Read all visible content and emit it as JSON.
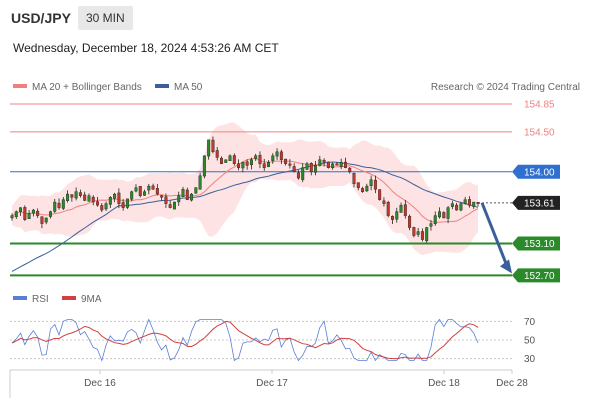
{
  "header": {
    "symbol": "USD/JPY",
    "timeframe": "30 MIN",
    "datetime": "Wednesday, December 18, 2024 4:53:26 AM CET"
  },
  "legend": {
    "ma20": "MA 20 + Bollinger Bands",
    "ma50": "MA 50",
    "credit": "Research © 2024 Trading Central",
    "rsi": "RSI",
    "rsi_ma": "9MA"
  },
  "colors": {
    "ma20": "#f08080",
    "bollinger_fill": "#fde0e0",
    "ma50": "#3a5f9a",
    "resistance": "#f08080",
    "pivot": "#2f6fcf",
    "support": "#2a8a2a",
    "candle_up": "#2a8a2a",
    "candle_down": "#c0392b",
    "rsi": "#5b7fd6",
    "rsi_ma": "#d04040",
    "arrow": "#3a5f9a"
  },
  "chart_data": [
    {
      "type": "candlestick",
      "symbol": "USD/JPY",
      "timeframe": "30 MIN",
      "ylim": [
        152.58,
        155.0
      ],
      "x_ticks": [
        "Dec 16",
        "Dec 17",
        "Dec 18",
        "Dec 28"
      ],
      "levels": [
        {
          "label": "154.85",
          "value": 154.85,
          "kind": "resistance"
        },
        {
          "label": "154.50",
          "value": 154.5,
          "kind": "resistance"
        },
        {
          "label": "154.00",
          "value": 154.0,
          "kind": "pivot"
        },
        {
          "label": "153.61",
          "value": 153.61,
          "kind": "last"
        },
        {
          "label": "153.10",
          "value": 153.1,
          "kind": "support"
        },
        {
          "label": "152.70",
          "value": 152.7,
          "kind": "support"
        }
      ],
      "forecast_arrow": {
        "from": 153.61,
        "to": 152.7
      },
      "close_series": [
        153.45,
        153.5,
        153.55,
        153.4,
        153.48,
        153.52,
        153.45,
        153.35,
        153.42,
        153.5,
        153.62,
        153.55,
        153.65,
        153.72,
        153.68,
        153.75,
        153.7,
        153.64,
        153.7,
        153.62,
        153.58,
        153.52,
        153.6,
        153.68,
        153.72,
        153.6,
        153.55,
        153.66,
        153.75,
        153.8,
        153.7,
        153.75,
        153.82,
        153.78,
        153.72,
        153.68,
        153.6,
        153.55,
        153.62,
        153.7,
        153.78,
        153.65,
        153.72,
        153.8,
        153.95,
        154.2,
        154.4,
        154.25,
        154.18,
        154.1,
        154.15,
        154.2,
        154.1,
        154.05,
        154.12,
        154.08,
        154.15,
        154.2,
        154.1,
        154.05,
        154.12,
        154.2,
        154.25,
        154.15,
        154.1,
        154.08,
        154.0,
        153.92,
        154.05,
        154.1,
        154.0,
        154.08,
        154.15,
        154.12,
        154.05,
        154.1,
        154.08,
        154.12,
        154.05,
        154.0,
        153.85,
        153.8,
        153.75,
        153.82,
        153.9,
        153.78,
        153.65,
        153.6,
        153.45,
        153.4,
        153.5,
        153.58,
        153.45,
        153.3,
        153.2,
        153.25,
        153.15,
        153.3,
        153.35,
        153.45,
        153.5,
        153.42,
        153.55,
        153.6,
        153.52,
        153.6,
        153.65,
        153.58,
        153.62,
        153.6
      ]
    },
    {
      "type": "line",
      "name": "RSI",
      "ylim": [
        20,
        80
      ],
      "y_ticks": [
        70,
        50,
        30
      ],
      "x_ticks": [
        "Dec 16",
        "Dec 17",
        "Dec 18",
        "Dec 28"
      ]
    }
  ]
}
